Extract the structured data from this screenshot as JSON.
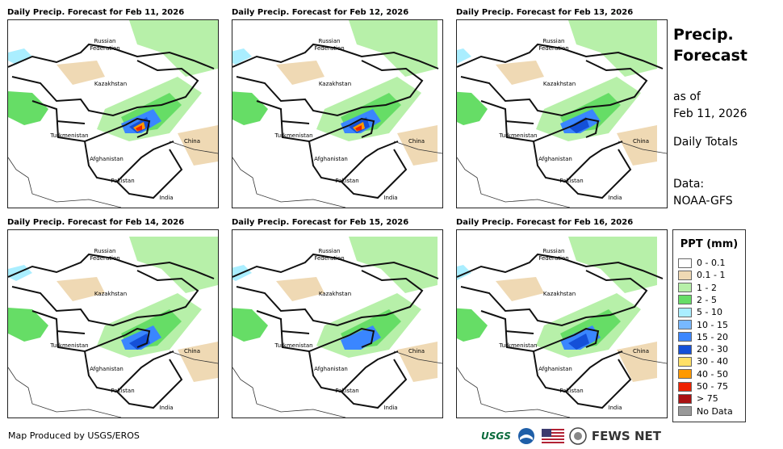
{
  "side": {
    "title_line1": "Precip.",
    "title_line2": "Forecast",
    "asof_line1": "as of",
    "asof_line2": "Feb 11, 2026",
    "totals": "Daily Totals",
    "data_line1": "Data:",
    "data_line2": "NOAA-GFS"
  },
  "legend": {
    "title": "PPT (mm)",
    "items": [
      {
        "label": "0 - 0.1",
        "color": "#ffffff"
      },
      {
        "label": "0.1 - 1",
        "color": "#efd9b4"
      },
      {
        "label": "1 - 2",
        "color": "#b7f0a9"
      },
      {
        "label": "2 - 5",
        "color": "#66dd66"
      },
      {
        "label": "5 - 10",
        "color": "#aaeeff"
      },
      {
        "label": "10 - 15",
        "color": "#77b8ff"
      },
      {
        "label": "15 - 20",
        "color": "#3a86ff"
      },
      {
        "label": "20 - 30",
        "color": "#1450d8"
      },
      {
        "label": "30 - 40",
        "color": "#ffe066"
      },
      {
        "label": "40 - 50",
        "color": "#ff9900"
      },
      {
        "label": "50 - 75",
        "color": "#ee2200"
      },
      {
        "label": "> 75",
        "color": "#aa1111"
      },
      {
        "label": "No Data",
        "color": "#999999"
      }
    ]
  },
  "map_labels": {
    "russia1": "Russian",
    "russia2": "Federation",
    "kazakhstan": "Kazakhstan",
    "turkmenistan": "Turkmenistan",
    "afghanistan": "Afghanistan",
    "pakistan": "Pakistan",
    "china": "China",
    "india": "India"
  },
  "panels": [
    {
      "title": "Daily Precip. Forecast for Feb 11, 2026",
      "intensity": "heavy"
    },
    {
      "title": "Daily Precip. Forecast for Feb 12, 2026",
      "intensity": "heavy"
    },
    {
      "title": "Daily Precip. Forecast for Feb 13, 2026",
      "intensity": "moderate"
    },
    {
      "title": "Daily Precip. Forecast for Feb 14, 2026",
      "intensity": "moderate"
    },
    {
      "title": "Daily Precip. Forecast for Feb 15, 2026",
      "intensity": "light"
    },
    {
      "title": "Daily Precip. Forecast for Feb 16, 2026",
      "intensity": "moderate"
    }
  ],
  "footer": {
    "credit": "Map Produced by USGS/EROS",
    "usgs": "USGS",
    "fews": "FEWS NET"
  }
}
